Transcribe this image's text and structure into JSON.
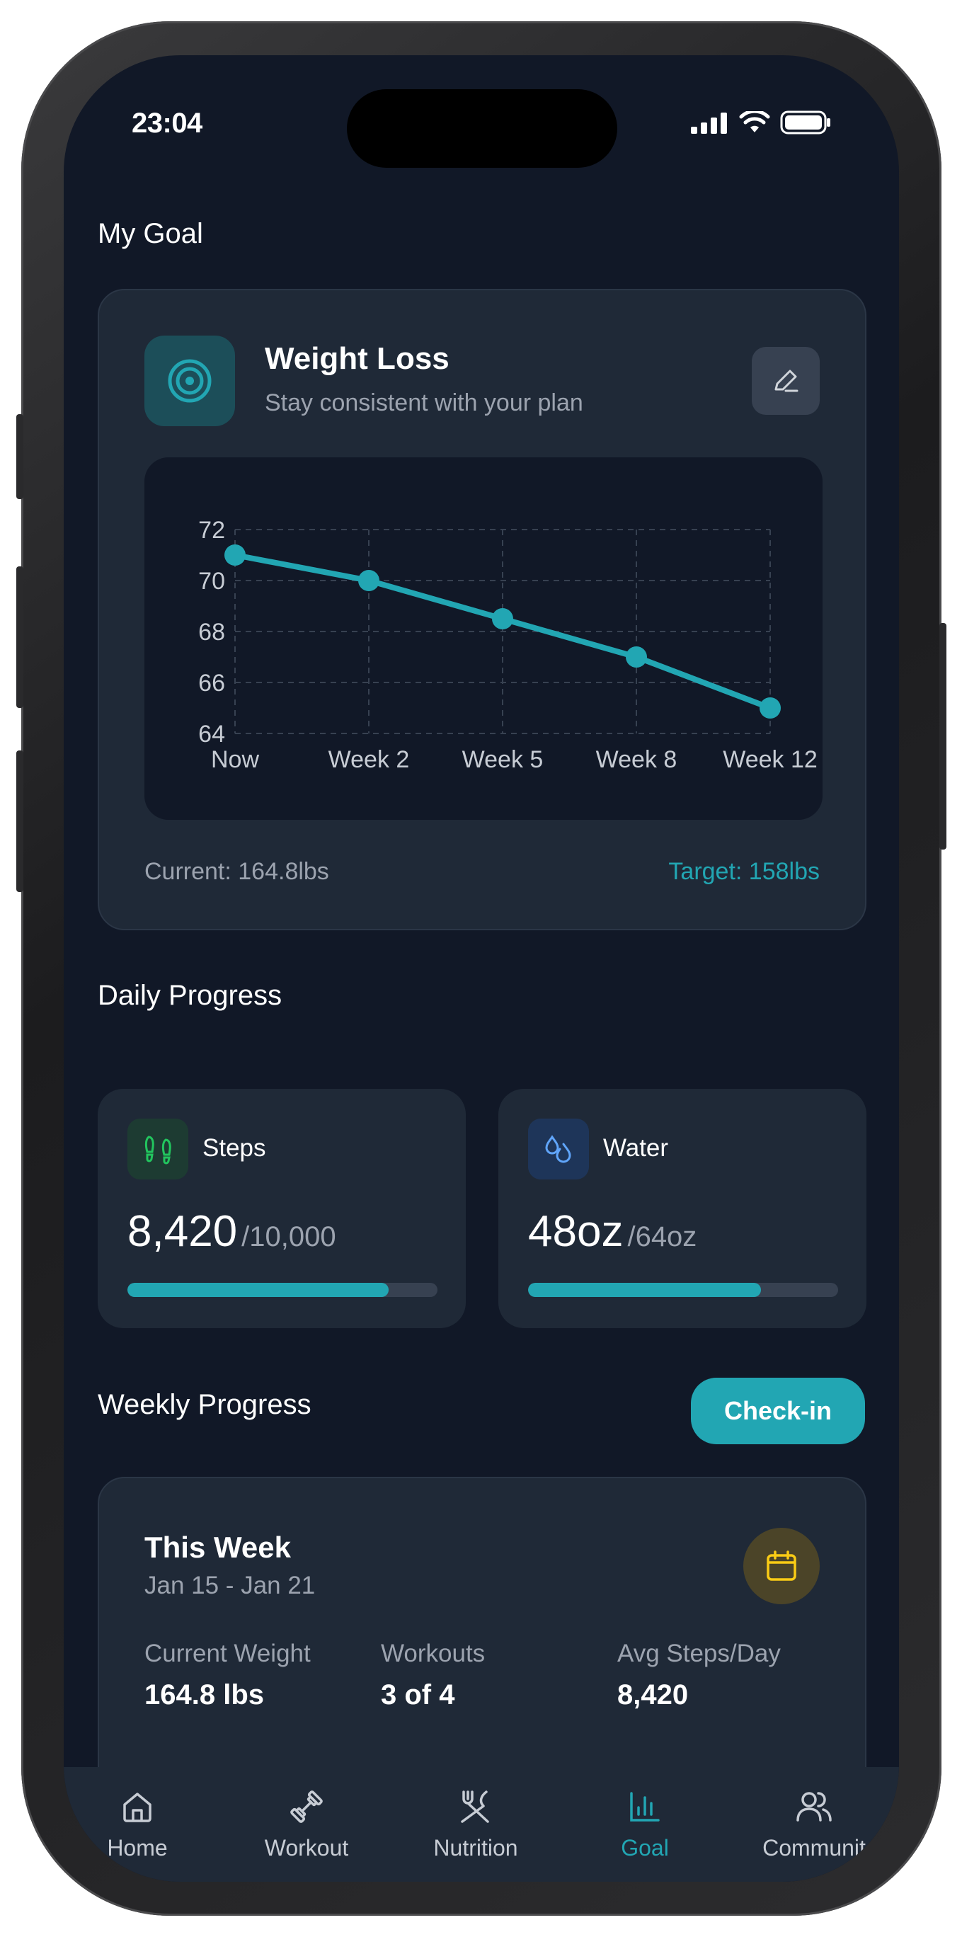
{
  "status_bar": {
    "time": "23:04"
  },
  "my_goal": {
    "section_title": "My Goal",
    "title": "Weight Loss",
    "subtitle": "Stay consistent with your plan",
    "current": "Current: 164.8lbs",
    "target": "Target: 158lbs"
  },
  "chart_data": {
    "type": "line",
    "x": [
      "Now",
      "Week 2",
      "Week 5",
      "Week 8",
      "Week 12"
    ],
    "series": [
      {
        "values": [
          71,
          70,
          68.5,
          67,
          65
        ]
      }
    ],
    "ylim": [
      64,
      72
    ],
    "yticks": [
      "64",
      "66",
      "68",
      "70",
      "72"
    ],
    "grid": true,
    "color": "#22a6b3"
  },
  "daily_progress": {
    "section_title": "Daily Progress",
    "steps": {
      "label": "Steps",
      "value": "8,420",
      "goal": "/10,000",
      "progress": 0.842
    },
    "water": {
      "label": "Water",
      "value": "48oz",
      "goal": "/64oz",
      "progress": 0.75
    }
  },
  "weekly_progress": {
    "section_title": "Weekly Progress",
    "checkin_label": "Check-in",
    "title": "This Week",
    "range": "Jan 15 - Jan 21",
    "stats": [
      {
        "label": "Current Weight",
        "value": "164.8 lbs"
      },
      {
        "label": "Workouts",
        "value": "3 of 4"
      },
      {
        "label": "Avg Steps/Day",
        "value": "8,420"
      }
    ]
  },
  "nav": {
    "items": [
      {
        "label": "Home"
      },
      {
        "label": "Workout"
      },
      {
        "label": "Nutrition"
      },
      {
        "label": "Goal"
      },
      {
        "label": "Communit"
      }
    ],
    "active": "Goal"
  },
  "colors": {
    "accent": "#22a6b3",
    "background": "#111827",
    "card": "#1f2937",
    "steps_icon": "#22c55e",
    "water_icon": "#60a5fa",
    "calendar_icon": "#facc15"
  }
}
